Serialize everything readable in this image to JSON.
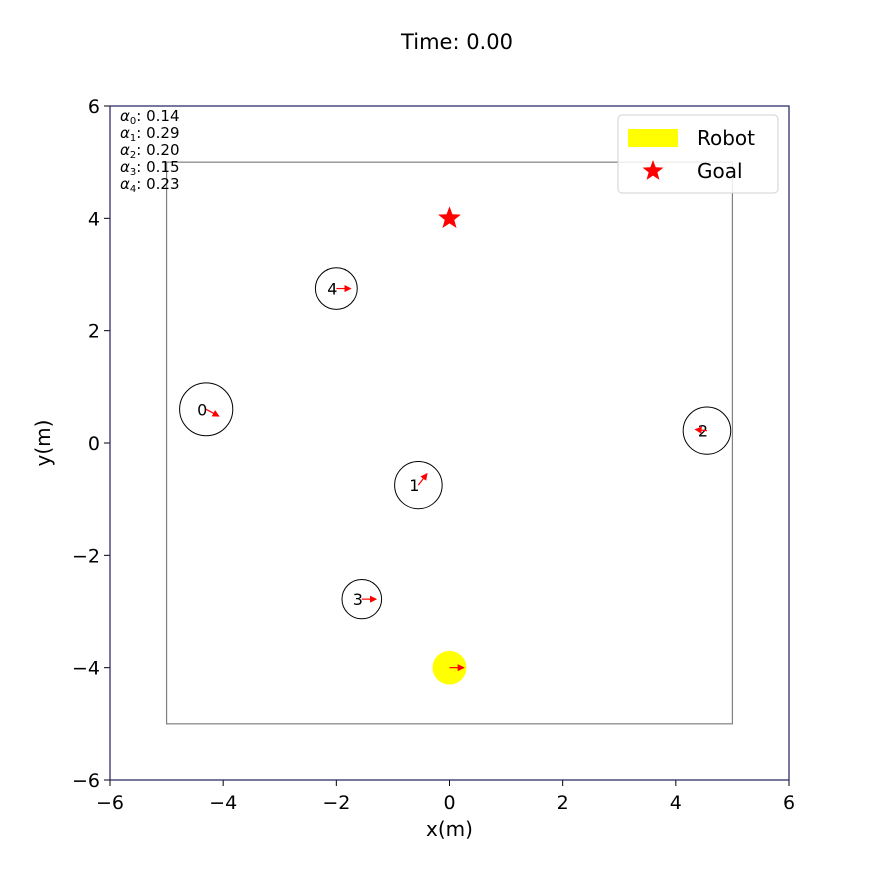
{
  "chart_data": {
    "type": "scatter",
    "title": "Time: 0.00",
    "xlabel": "x(m)",
    "ylabel": "y(m)",
    "xlim": [
      -6,
      6
    ],
    "ylim": [
      -6,
      6
    ],
    "xticks": [
      -6,
      -4,
      -2,
      0,
      2,
      4,
      6
    ],
    "yticks": [
      -6,
      -4,
      -2,
      0,
      2,
      4,
      6
    ],
    "xtick_labels": [
      "−6",
      "−4",
      "−2",
      "0",
      "2",
      "4",
      "6"
    ],
    "ytick_labels": [
      "−6",
      "−4",
      "−2",
      "0",
      "2",
      "4",
      "6"
    ],
    "grid": false,
    "legend": {
      "placement": "top-right",
      "entries": [
        {
          "label": "Robot",
          "color": "#ffff00",
          "marker": "patch"
        },
        {
          "label": "Goal",
          "color": "#ff0000",
          "marker": "star"
        }
      ]
    },
    "boundary": {
      "x": [
        -5,
        5
      ],
      "y": [
        -5,
        5
      ],
      "color": "#808080"
    },
    "robot": {
      "x": 0,
      "y": -4,
      "radius": 0.3,
      "heading": [
        0.25,
        0
      ],
      "color": "#ffff00"
    },
    "goal": {
      "x": 0,
      "y": 4,
      "color": "#ff0000"
    },
    "humans": [
      {
        "id": "0",
        "x": -4.3,
        "y": 0.6,
        "radius": 0.47,
        "heading": [
          0.22,
          -0.12
        ]
      },
      {
        "id": "1",
        "x": -0.55,
        "y": -0.75,
        "radius": 0.42,
        "heading": [
          0.15,
          0.2
        ]
      },
      {
        "id": "2",
        "x": 4.55,
        "y": 0.22,
        "radius": 0.42,
        "heading": [
          -0.2,
          0.02
        ]
      },
      {
        "id": "3",
        "x": -1.55,
        "y": -2.78,
        "radius": 0.35,
        "heading": [
          0.25,
          0
        ]
      },
      {
        "id": "4",
        "x": -2.0,
        "y": 2.75,
        "radius": 0.37,
        "heading": [
          0.25,
          0
        ]
      }
    ],
    "alphas": [
      {
        "sub": "0",
        "value": ": 0.14"
      },
      {
        "sub": "1",
        "value": ": 0.29"
      },
      {
        "sub": "2",
        "value": ": 0.20"
      },
      {
        "sub": "3",
        "value": ": 0.15"
      },
      {
        "sub": "4",
        "value": ": 0.23"
      }
    ]
  }
}
